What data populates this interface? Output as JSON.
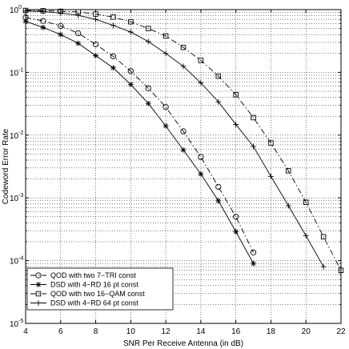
{
  "chart_data": {
    "type": "line",
    "title": "",
    "xlabel": "SNR Per Receive Antenna (in dB)",
    "ylabel": "Codeword Error Rate",
    "xlim": [
      4,
      22
    ],
    "ylim": [
      1e-05,
      1
    ],
    "y_scale": "log",
    "grid": true,
    "legend_position": "bottom-left",
    "x_ticks": [
      "4",
      "6",
      "8",
      "10",
      "12",
      "14",
      "16",
      "18",
      "20",
      "22"
    ],
    "y_ticks": [
      {
        "base": "10",
        "exp": "0"
      },
      {
        "base": "10",
        "exp": "-1"
      },
      {
        "base": "10",
        "exp": "-2"
      },
      {
        "base": "10",
        "exp": "-3"
      },
      {
        "base": "10",
        "exp": "-4"
      },
      {
        "base": "10",
        "exp": "-5"
      }
    ],
    "series": [
      {
        "name": "QOD with two 7−TRI const",
        "marker": "circle",
        "line": "dashdot",
        "x": [
          4,
          5,
          6,
          7,
          8,
          9,
          10,
          11,
          12,
          13,
          14,
          15,
          16,
          17
        ],
        "y": [
          0.75,
          0.66,
          0.55,
          0.42,
          0.28,
          0.18,
          0.105,
          0.056,
          0.028,
          0.0115,
          0.0045,
          0.0015,
          0.0005,
          0.000135
        ]
      },
      {
        "name": "DSD with 4−RD 16 pt const",
        "marker": "star",
        "line": "solid",
        "x": [
          4,
          5,
          6,
          7,
          8,
          9,
          10,
          11,
          12,
          13,
          14,
          15,
          16,
          17
        ],
        "y": [
          0.65,
          0.52,
          0.4,
          0.29,
          0.185,
          0.118,
          0.064,
          0.032,
          0.014,
          0.0058,
          0.0024,
          0.0009,
          0.00029,
          9e-05
        ]
      },
      {
        "name": "QOD with two 16−QAM const",
        "marker": "square",
        "line": "dashdot",
        "x": [
          4,
          5,
          6,
          7,
          8,
          9,
          10,
          11,
          12,
          13,
          14,
          15,
          16,
          17,
          18,
          19,
          20,
          21,
          22
        ],
        "y": [
          0.97,
          0.96,
          0.94,
          0.92,
          0.85,
          0.76,
          0.64,
          0.5,
          0.38,
          0.25,
          0.155,
          0.087,
          0.044,
          0.019,
          0.0075,
          0.0027,
          0.00085,
          0.00024,
          7e-05
        ]
      },
      {
        "name": "DSD with 4−RD 64 pt const",
        "marker": "plus",
        "line": "solid",
        "x": [
          4,
          5,
          6,
          7,
          8,
          9,
          10,
          11,
          12,
          13,
          14,
          15,
          16,
          17,
          18,
          19,
          20,
          21
        ],
        "y": [
          0.95,
          0.93,
          0.88,
          0.81,
          0.7,
          0.56,
          0.44,
          0.31,
          0.2,
          0.125,
          0.068,
          0.034,
          0.0148,
          0.0066,
          0.0022,
          0.00075,
          0.00025,
          8e-05
        ]
      }
    ]
  }
}
